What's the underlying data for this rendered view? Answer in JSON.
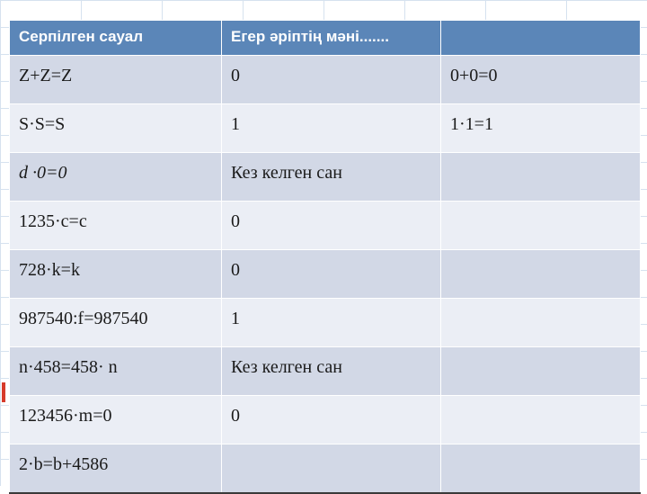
{
  "table": {
    "header_bg": "#5b86b8",
    "row_color_a": "#d2d8e6",
    "row_color_b": "#ebeef5",
    "header_text_color": "#ffffff",
    "cell_text_color": "#1a1a1a",
    "columns": [
      "Серпілген сауал",
      "Егер әріптің мәні.......",
      ""
    ],
    "rows": [
      {
        "c1": "Z+Z=Z",
        "c2": "0",
        "c3": "0+0=0",
        "c1_italic": false
      },
      {
        "c1": "S·S=S",
        "c2": "1",
        "c3": "1·1=1",
        "c1_italic": false
      },
      {
        "c1": "d ·0=0",
        "c2": "Кез келген сан",
        "c3": "",
        "c1_italic": true
      },
      {
        "c1": "1235·c=c",
        "c2": "0",
        "c3": "",
        "c1_italic": false
      },
      {
        "c1": "728·k=k",
        "c2": "0",
        "c3": "",
        "c1_italic": false
      },
      {
        "c1": "987540:f=987540",
        "c2": "1",
        "c3": "",
        "c1_italic": false
      },
      {
        "c1": "n·458=458· n",
        "c2": "Кез келген сан",
        "c3": "",
        "c1_italic": false
      },
      {
        "c1": "123456·m=0",
        "c2": "0",
        "c3": "",
        "c1_italic": false
      },
      {
        "c1": "2·b=b+4586",
        "c2": "",
        "c3": "",
        "c1_italic": false
      }
    ]
  }
}
